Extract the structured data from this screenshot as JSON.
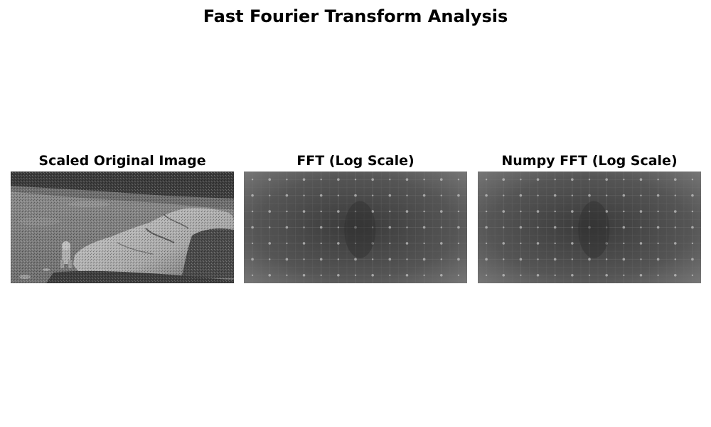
{
  "figure": {
    "title": "Fast Fourier Transform Analysis"
  },
  "panels": [
    {
      "title": "Scaled Original Image",
      "content": "grayscale photograph of large rock on lunar surface with astronaut",
      "colormap": "gray"
    },
    {
      "title": "FFT (Log Scale)",
      "content": "log-magnitude spectrum with periodic bright grid of peaks",
      "colormap": "gray"
    },
    {
      "title": "Numpy FFT (Log Scale)",
      "content": "log-magnitude spectrum with periodic bright grid of peaks",
      "colormap": "gray"
    }
  ]
}
